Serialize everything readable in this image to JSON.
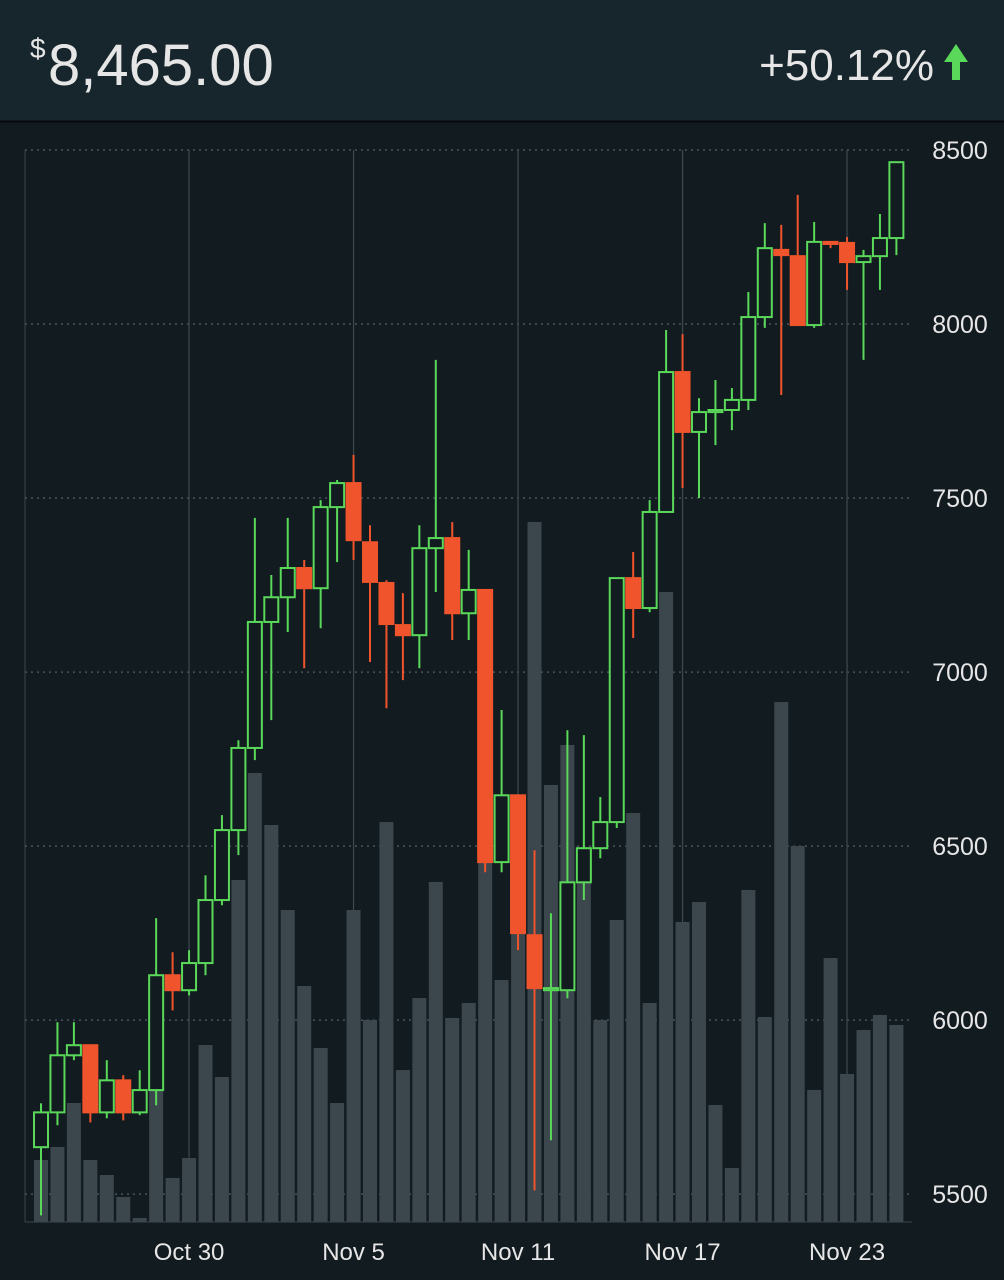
{
  "header": {
    "currency": "$",
    "price": "8,465.00",
    "change": "+50.12%"
  },
  "chart_data": {
    "type": "candlestick",
    "categories": [
      null,
      null,
      null,
      null,
      null,
      null,
      null,
      null,
      null,
      "Oct 30",
      null,
      null,
      null,
      null,
      null,
      null,
      null,
      null,
      null,
      "Nov 5",
      null,
      null,
      null,
      null,
      null,
      null,
      null,
      null,
      null,
      "Nov 11",
      null,
      null,
      null,
      null,
      null,
      null,
      null,
      null,
      null,
      "Nov 17",
      null,
      null,
      null,
      null,
      null,
      null,
      null,
      null,
      null,
      "Nov 23",
      null,
      null,
      null
    ],
    "open": [
      5635,
      5735,
      5899,
      5928,
      5735,
      5827,
      5735,
      5799,
      6129,
      6086,
      6164,
      6345,
      6546,
      6782,
      7144,
      7215,
      7299,
      7241,
      7474,
      7543,
      7373,
      7256,
      7135,
      7106,
      7356,
      7385,
      7169,
      7236,
      6454,
      6646,
      6244,
      6086,
      6086,
      6396,
      6494,
      6569,
      7270,
      7184,
      7460,
      7862,
      7690,
      7747,
      7753,
      7782,
      8020,
      8213,
      8195,
      7997,
      8236,
      8233,
      8178,
      8195,
      8247
    ],
    "high": [
      5761,
      5994,
      5994,
      5930,
      5885,
      5842,
      5856,
      6293,
      6195,
      6201,
      6416,
      6589,
      6804,
      7443,
      7279,
      7443,
      7322,
      7494,
      7552,
      7624,
      7422,
      7264,
      7227,
      7422,
      7897,
      7431,
      7351,
      7236,
      6891,
      6646,
      6488,
      6307,
      6833,
      6819,
      6641,
      7270,
      7345,
      7494,
      7983,
      7971,
      7787,
      7839,
      7816,
      8092,
      8290,
      8285,
      8371,
      8293,
      8236,
      8250,
      8213,
      8316,
      8465
    ],
    "low": [
      5439,
      5698,
      5885,
      5706,
      5718,
      5712,
      5727,
      5755,
      6028,
      6071,
      6129,
      6330,
      6474,
      6747,
      6862,
      7115,
      7011,
      7126,
      7316,
      7322,
      7029,
      6896,
      6977,
      7011,
      7230,
      7092,
      7092,
      6425,
      6425,
      6201,
      5511,
      5655,
      6063,
      6345,
      6465,
      6552,
      7098,
      7172,
      7460,
      7529,
      7500,
      7652,
      7695,
      7753,
      7989,
      7796,
      7997,
      7989,
      8218,
      8098,
      7897,
      8098,
      8198
    ],
    "close": [
      5735,
      5899,
      5928,
      5735,
      5827,
      5735,
      5799,
      6129,
      6086,
      6164,
      6345,
      6546,
      6782,
      7144,
      7215,
      7299,
      7241,
      7474,
      7543,
      7379,
      7259,
      7138,
      7106,
      7356,
      7385,
      7169,
      7236,
      6454,
      6646,
      6250,
      6092,
      6092,
      6396,
      6494,
      6569,
      7270,
      7184,
      7460,
      7862,
      7690,
      7747,
      7753,
      7782,
      8020,
      8218,
      8198,
      7997,
      8236,
      8230,
      8178,
      8195,
      8247,
      8465
    ],
    "volume": [
      6.2,
      7.5,
      11.9,
      6.2,
      4.7,
      2.5,
      0.4,
      20.8,
      4.4,
      6.4,
      17.7,
      14.5,
      34.2,
      44.9,
      39.7,
      31.2,
      23.6,
      17.4,
      11.9,
      31.2,
      20.2,
      40,
      15.2,
      22.4,
      34,
      20.4,
      21.9,
      37.2,
      24.2,
      29.2,
      70,
      43.7,
      47.7,
      36.2,
      20.2,
      30.2,
      40.9,
      21.9,
      63,
      30,
      32,
      11.7,
      5.4,
      33.2,
      20.5,
      52,
      37.6,
      13.2,
      26.4,
      14.8,
      19.2,
      20.7,
      19.7
    ],
    "up_color": "#5ad85a",
    "down_color": "#f0542c",
    "volume_color": "#3b464d",
    "ylim": [
      5420,
      8500
    ],
    "yticks": [
      5500,
      6000,
      6500,
      7000,
      7500,
      8000,
      8500
    ],
    "vlim": [
      0,
      107.2
    ],
    "grid": true
  }
}
